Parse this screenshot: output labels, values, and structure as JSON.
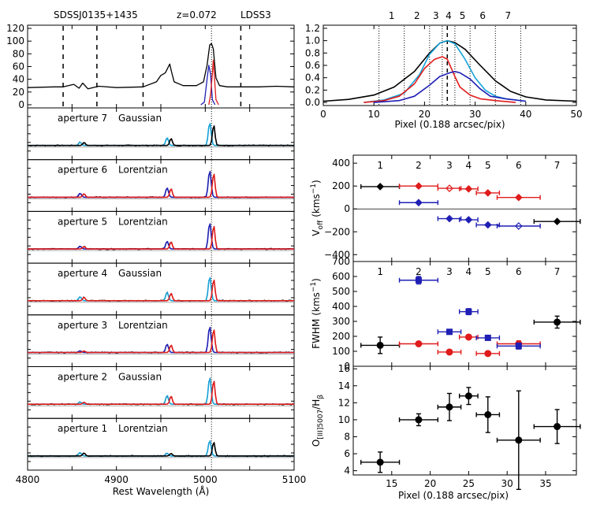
{
  "chart_data": [
    {
      "id": "top_left_spectrum",
      "type": "line",
      "header": {
        "object": "SDSSJ0135+1435",
        "redshift": "z=0.072",
        "instrument": "LDSS3"
      },
      "x_range": [
        4800,
        5100
      ],
      "ylim": [
        -5,
        125
      ],
      "yticks": [
        "0",
        "20",
        "40",
        "60",
        "80",
        "100",
        "120"
      ],
      "vertical_dashed_lines": [
        4840,
        4878,
        4930,
        5040
      ],
      "vertical_dotted_line": 5007,
      "series": [
        {
          "name": "total",
          "color": "#000000",
          "x": [
            4800,
            4830,
            4840,
            4852,
            4858,
            4862,
            4868,
            4880,
            4900,
            4930,
            4945,
            4950,
            4955,
            4960,
            4962,
            4965,
            4975,
            4990,
            4998,
            5002,
            5005,
            5007,
            5009,
            5012,
            5016,
            5025,
            5040,
            5060,
            5080,
            5100
          ],
          "y": [
            27,
            28,
            28,
            32,
            26,
            34,
            25,
            29,
            27,
            28,
            36,
            46,
            50,
            64,
            52,
            36,
            30,
            30,
            36,
            62,
            94,
            96,
            88,
            42,
            30,
            28,
            28,
            28,
            29,
            28
          ]
        },
        {
          "name": "blue component",
          "color": "#1f1fb4",
          "x": [
            4995,
            4999,
            5002,
            5004,
            5006,
            5008,
            5011
          ],
          "y": [
            0,
            4,
            40,
            62,
            48,
            8,
            0
          ]
        },
        {
          "name": "red component",
          "color": "#e01b1b",
          "x": [
            5004,
            5006,
            5008,
            5009,
            5010,
            5012,
            5015
          ],
          "y": [
            0,
            16,
            48,
            70,
            50,
            8,
            0
          ]
        }
      ]
    },
    {
      "id": "aperture_spectra",
      "type": "line",
      "xlabel": "Rest Wavelength (Å)",
      "x_range": [
        4800,
        5100
      ],
      "xticks": [
        "4800",
        "4900",
        "5000",
        "5100"
      ],
      "panels": [
        {
          "label": "aperture 7",
          "model": "Gaussian",
          "lines": [
            {
              "x": 4861,
              "h": 0.12,
              "c": [
                "#000000",
                "#17a2d8"
              ]
            },
            {
              "x": 4959,
              "h": 0.28,
              "c": [
                "#000000",
                "#17a2d8"
              ]
            },
            {
              "x": 5007,
              "h": 0.82,
              "c": [
                "#17a2d8",
                "#000000"
              ]
            }
          ]
        },
        {
          "label": "aperture 6",
          "model": "Lorentzian",
          "lines": [
            {
              "x": 4861,
              "h": 0.14,
              "c": [
                "#1f1fb4",
                "#e01b1b"
              ]
            },
            {
              "x": 4959,
              "h": 0.34,
              "c": [
                "#1f1fb4",
                "#e01b1b"
              ]
            },
            {
              "x": 5007,
              "h": 0.96,
              "c": [
                "#1f1fb4",
                "#e01b1b"
              ]
            }
          ]
        },
        {
          "label": "aperture 5",
          "model": "Lorentzian",
          "lines": [
            {
              "x": 4861,
              "h": 0.1,
              "c": [
                "#1f1fb4",
                "#e01b1b"
              ]
            },
            {
              "x": 4959,
              "h": 0.28,
              "c": [
                "#1f1fb4",
                "#e01b1b"
              ]
            },
            {
              "x": 5007,
              "h": 0.94,
              "c": [
                "#1f1fb4",
                "#e01b1b"
              ]
            }
          ]
        },
        {
          "label": "aperture 4",
          "model": "Gaussian",
          "lines": [
            {
              "x": 4861,
              "h": 0.14,
              "c": [
                "#1f1fb4",
                "#e01b1b"
              ]
            },
            {
              "x": 4959,
              "h": 0.3,
              "c": [
                "#1f1fb4",
                "#e01b1b"
              ]
            },
            {
              "x": 5007,
              "h": 0.86,
              "c": [
                "#17a2d8",
                "#e01b1b"
              ]
            }
          ]
        },
        {
          "label": "aperture 3",
          "model": "Lorentzian",
          "lines": [
            {
              "x": 4861,
              "h": 0.06,
              "c": [
                "#1f1fb4",
                "#e01b1b"
              ]
            },
            {
              "x": 4959,
              "h": 0.3,
              "c": [
                "#1f1fb4",
                "#e01b1b"
              ]
            },
            {
              "x": 5007,
              "h": 0.94,
              "c": [
                "#1f1fb4",
                "#e01b1b"
              ]
            }
          ]
        },
        {
          "label": "aperture 2",
          "model": "Gaussian",
          "lines": [
            {
              "x": 4861,
              "h": 0.08,
              "c": [
                "#1f1fb4",
                "#e01b1b"
              ]
            },
            {
              "x": 4959,
              "h": 0.32,
              "c": [
                "#17a2d8",
                "#e01b1b"
              ]
            },
            {
              "x": 5007,
              "h": 0.96,
              "c": [
                "#17a2d8",
                "#e01b1b"
              ]
            }
          ]
        },
        {
          "label": "aperture 1",
          "model": "Lorentzian",
          "lines": [
            {
              "x": 4861,
              "h": 0.12,
              "c": [
                "#17a2d8",
                "#000000"
              ]
            },
            {
              "x": 4959,
              "h": 0.1,
              "c": [
                "#17a2d8",
                "#000000"
              ]
            },
            {
              "x": 5007,
              "h": 0.56,
              "c": [
                "#17a2d8",
                "#000000"
              ]
            }
          ]
        }
      ]
    },
    {
      "id": "spatial_profiles",
      "type": "line",
      "xlabel": "Pixel (0.188 arcsec/pix)",
      "xlim": [
        0,
        50
      ],
      "xticks": [
        "0",
        "10",
        "20",
        "30",
        "40",
        "50"
      ],
      "ylim": [
        -0.05,
        1.25
      ],
      "yticks": [
        "0.0",
        "0.2",
        "0.4",
        "0.6",
        "0.8",
        "1.0",
        "1.2"
      ],
      "apertures": {
        "labels": [
          "1",
          "2",
          "3",
          "4",
          "5",
          "6",
          "7"
        ],
        "boundaries": [
          11,
          16,
          21,
          23.5,
          26,
          29,
          34,
          39
        ],
        "center": 24.5
      },
      "series": [
        {
          "name": "total",
          "color": "#000000",
          "x": [
            0,
            5,
            10,
            14,
            18,
            21,
            23,
            24.5,
            26,
            28,
            31,
            34,
            37,
            40,
            44,
            50
          ],
          "y": [
            0.02,
            0.05,
            0.12,
            0.25,
            0.5,
            0.8,
            0.96,
            1.0,
            0.97,
            0.86,
            0.6,
            0.35,
            0.18,
            0.09,
            0.04,
            0.02
          ]
        },
        {
          "name": "cyan",
          "color": "#17a2d8",
          "x": [
            8,
            12,
            16,
            19,
            21,
            23,
            24.5,
            26,
            28,
            30,
            32,
            34,
            36,
            40
          ],
          "y": [
            0,
            0.04,
            0.15,
            0.45,
            0.78,
            0.96,
            1.0,
            0.95,
            0.7,
            0.4,
            0.2,
            0.1,
            0.06,
            0.02
          ]
        },
        {
          "name": "red",
          "color": "#e01b1b",
          "x": [
            8,
            12,
            15,
            18,
            20,
            22,
            23.5,
            24.5,
            26,
            27,
            29,
            31,
            34,
            38
          ],
          "y": [
            0,
            0.03,
            0.1,
            0.3,
            0.55,
            0.7,
            0.74,
            0.7,
            0.42,
            0.25,
            0.12,
            0.06,
            0.03,
            0
          ]
        },
        {
          "name": "blue",
          "color": "#1f1fb4",
          "x": [
            10,
            15,
            18,
            21,
            23,
            25,
            26,
            27,
            29,
            31,
            33,
            36,
            40
          ],
          "y": [
            0,
            0.03,
            0.1,
            0.28,
            0.42,
            0.48,
            0.5,
            0.48,
            0.38,
            0.22,
            0.1,
            0.06,
            0.02
          ]
        }
      ]
    },
    {
      "id": "v_off",
      "type": "scatter",
      "ylabel_main": "V",
      "ylabel_sub": "off",
      "ylabel_units": "(kms",
      "ylabel_exp": "−1",
      "ylabel_close": ")",
      "xlim": [
        10,
        39
      ],
      "ylim": [
        -460,
        470
      ],
      "yticks": [
        "−400",
        "−200",
        "0",
        "200",
        "400"
      ],
      "aperture_labels": {
        "labels": [
          "1",
          "2",
          "3",
          "4",
          "5",
          "6",
          "7"
        ],
        "x": [
          13.5,
          18.5,
          22.5,
          25,
          27.5,
          31.5,
          36.5
        ]
      },
      "series": [
        {
          "name": "black",
          "color": "#000000",
          "marker": "diamond",
          "points": [
            {
              "x": 13.5,
              "y": 195,
              "xerr": 2.5,
              "filled": true
            },
            {
              "x": 36.5,
              "y": -110,
              "xerr": 3,
              "filled": true
            }
          ]
        },
        {
          "name": "red",
          "color": "#e01b1b",
          "marker": "diamond",
          "points": [
            {
              "x": 18.5,
              "y": 200,
              "xerr": 2.5,
              "filled": true
            },
            {
              "x": 22.5,
              "y": 180,
              "xerr": 1.5,
              "filled": false
            },
            {
              "x": 25,
              "y": 175,
              "xerr": 1.2,
              "filled": true
            },
            {
              "x": 27.5,
              "y": 140,
              "xerr": 1.5,
              "filled": true
            },
            {
              "x": 31.5,
              "y": 100,
              "xerr": 2.8,
              "filled": true
            }
          ]
        },
        {
          "name": "blue",
          "color": "#1f1fb4",
          "marker": "diamond",
          "points": [
            {
              "x": 18.5,
              "y": 55,
              "xerr": 2.5,
              "filled": true
            },
            {
              "x": 22.5,
              "y": -85,
              "xerr": 1.5,
              "filled": true
            },
            {
              "x": 25,
              "y": -95,
              "xerr": 1.2,
              "filled": true
            },
            {
              "x": 27.5,
              "y": -140,
              "xerr": 1.5,
              "filled": true
            },
            {
              "x": 31.5,
              "y": -150,
              "xerr": 2.8,
              "filled": false
            }
          ]
        }
      ]
    },
    {
      "id": "fwhm",
      "type": "scatter",
      "ylabel_main": "FWHM",
      "ylabel_units": "(kms",
      "ylabel_exp": "−1",
      "ylabel_close": ")",
      "xlim": [
        10,
        39
      ],
      "ylim": [
        0,
        700
      ],
      "yticks": [
        "0",
        "100",
        "200",
        "300",
        "400",
        "500",
        "600",
        "700"
      ],
      "aperture_labels": {
        "labels": [
          "1",
          "2",
          "3",
          "4",
          "5",
          "6",
          "7"
        ],
        "x": [
          13.5,
          18.5,
          22.5,
          25,
          27.5,
          31.5,
          36.5
        ]
      },
      "series": [
        {
          "name": "black",
          "color": "#000000",
          "marker": "circle",
          "points": [
            {
              "x": 13.5,
              "y": 140,
              "xerr": 2.5,
              "yerr": 55,
              "filled": true
            },
            {
              "x": 36.5,
              "y": 295,
              "xerr": 3,
              "yerr": 40,
              "filled": true
            }
          ]
        },
        {
          "name": "red",
          "color": "#e01b1b",
          "marker": "circle",
          "points": [
            {
              "x": 18.5,
              "y": 150,
              "xerr": 2.5,
              "yerr": 10,
              "filled": true
            },
            {
              "x": 22.5,
              "y": 95,
              "xerr": 1.5,
              "yerr": 10,
              "filled": true
            },
            {
              "x": 25,
              "y": 195,
              "xerr": 1.2,
              "yerr": 10,
              "filled": true
            },
            {
              "x": 27.5,
              "y": 85,
              "xerr": 1.5,
              "yerr": 10,
              "filled": true
            },
            {
              "x": 31.5,
              "y": 150,
              "xerr": 2.8,
              "yerr": 20,
              "filled": true
            }
          ]
        },
        {
          "name": "blue",
          "color": "#1f1fb4",
          "marker": "square",
          "points": [
            {
              "x": 18.5,
              "y": 575,
              "xerr": 2.5,
              "yerr": 25,
              "filled": true
            },
            {
              "x": 22.5,
              "y": 230,
              "xerr": 1.5,
              "yerr": 12,
              "filled": true
            },
            {
              "x": 25,
              "y": 365,
              "xerr": 1.2,
              "yerr": 20,
              "filled": true
            },
            {
              "x": 27.5,
              "y": 190,
              "xerr": 1.5,
              "yerr": 10,
              "filled": true
            },
            {
              "x": 31.5,
              "y": 135,
              "xerr": 2.8,
              "yerr": 20,
              "filled": true
            }
          ]
        }
      ]
    },
    {
      "id": "oiii_hbeta",
      "type": "scatter",
      "ylabel_main": "O",
      "ylabel_sub": "[III]5007",
      "ylabel_tail": "/H",
      "ylabel_tail_sub": "β",
      "xlabel": "Pixel (0.188 arcsec/pix)",
      "xlim": [
        10,
        39
      ],
      "xticks": [
        "15",
        "20",
        "25",
        "30",
        "35"
      ],
      "ylim": [
        3.5,
        16.3
      ],
      "yticks": [
        "4",
        "6",
        "8",
        "10",
        "12",
        "14",
        "16"
      ],
      "series": [
        {
          "name": "ratio",
          "color": "#000000",
          "marker": "circle",
          "points": [
            {
              "x": 13.5,
              "y": 5.0,
              "xerr": 2.5,
              "yerr": 1.2
            },
            {
              "x": 18.5,
              "y": 10.0,
              "xerr": 2.5,
              "yerr": 0.7
            },
            {
              "x": 22.5,
              "y": 11.5,
              "xerr": 1.5,
              "yerr": 1.6
            },
            {
              "x": 25,
              "y": 12.8,
              "xerr": 1.2,
              "yerr": 1.0
            },
            {
              "x": 27.5,
              "y": 10.6,
              "xerr": 1.5,
              "yerr": 2.1
            },
            {
              "x": 31.5,
              "y": 7.6,
              "xerr": 2.8,
              "yerr": 5.8
            },
            {
              "x": 36.5,
              "y": 9.2,
              "xerr": 3,
              "yerr": 2.0
            }
          ]
        }
      ]
    }
  ]
}
